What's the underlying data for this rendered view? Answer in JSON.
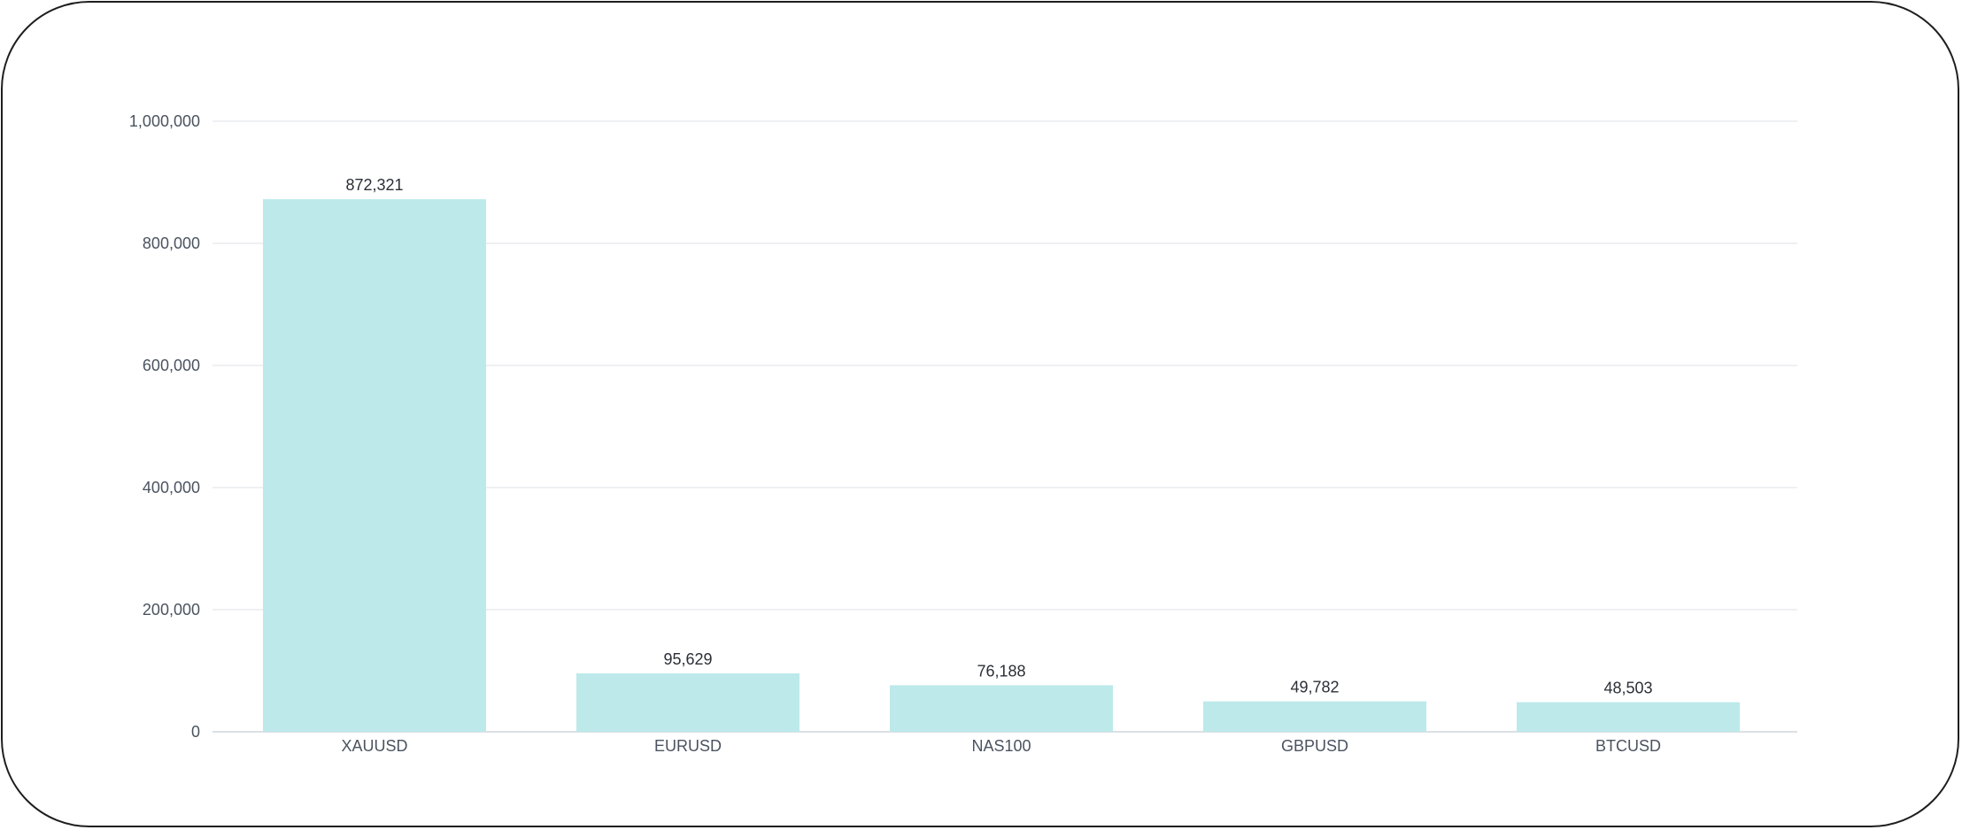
{
  "chart_data": {
    "type": "bar",
    "categories": [
      "XAUUSD",
      "EURUSD",
      "NAS100",
      "GBPUSD",
      "BTCUSD"
    ],
    "values": [
      872321,
      95629,
      76188,
      49782,
      48503
    ],
    "data_labels": [
      "872,321",
      "95,629",
      "76,188",
      "49,782",
      "48,503"
    ],
    "y_ticks": [
      0,
      200000,
      400000,
      600000,
      800000,
      1000000
    ],
    "y_tick_labels": [
      "0",
      "200,000",
      "400,000",
      "600,000",
      "800,000",
      "1,000,000"
    ],
    "ylim": [
      0,
      1000000
    ],
    "grid": true,
    "legend": "none",
    "title": "",
    "xlabel": "",
    "ylabel": "",
    "colors": {
      "bar": "#bde9ea",
      "grid": "#e8ecef",
      "text": "#4a5360",
      "value_text": "#2b2f36"
    }
  }
}
